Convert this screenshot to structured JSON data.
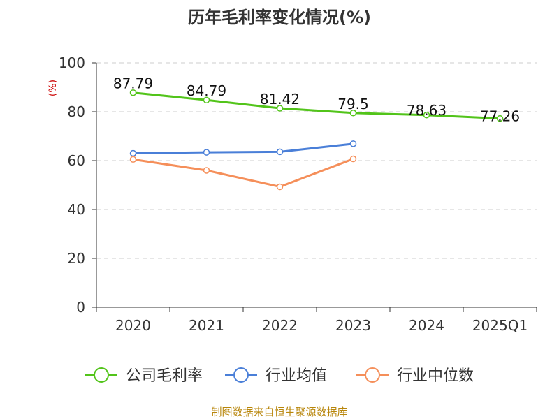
{
  "chart_data": {
    "type": "line",
    "title": "历年毛利率变化情况(%)",
    "ylabel": "(%)",
    "xlabel": "",
    "categories": [
      "2020",
      "2021",
      "2022",
      "2023",
      "2024",
      "2025Q1"
    ],
    "ylim": [
      0,
      100
    ],
    "yticks": [
      0,
      20,
      40,
      60,
      80,
      100
    ],
    "grid": "horizontal-dashed",
    "legend_position": "bottom",
    "series": [
      {
        "name": "公司毛利率",
        "color": "#52c41a",
        "values": [
          87.79,
          84.79,
          81.42,
          79.5,
          78.63,
          77.26
        ],
        "labels": [
          "87.79",
          "84.79",
          "81.42",
          "79.5",
          "78.63",
          "77.26"
        ]
      },
      {
        "name": "行业均值",
        "color": "#4a7fd8",
        "values": [
          63.0,
          63.4,
          63.6,
          66.9,
          null,
          null
        ]
      },
      {
        "name": "行业中位数",
        "color": "#f58f5a",
        "values": [
          60.5,
          56.0,
          49.3,
          60.7,
          null,
          null
        ]
      }
    ]
  },
  "source": "制图数据来自恒生聚源数据库"
}
